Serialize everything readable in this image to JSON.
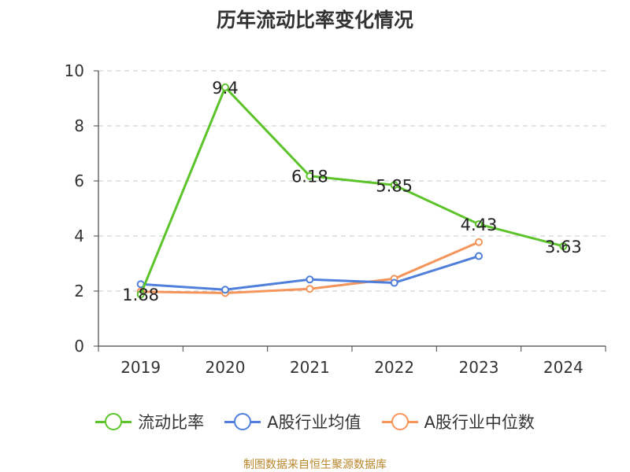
{
  "chart_data": {
    "type": "line",
    "title": "历年流动比率变化情况",
    "categories": [
      "2019",
      "2020",
      "2021",
      "2022",
      "2023",
      "2024"
    ],
    "y_ticks": [
      "0",
      "2",
      "4",
      "6",
      "8",
      "10"
    ],
    "ylim": [
      0,
      10
    ],
    "grid": true,
    "legend_position": "bottom",
    "series": [
      {
        "name": "流动比率",
        "color": "#5cc42a",
        "values": [
          1.88,
          9.4,
          6.18,
          5.85,
          4.43,
          3.63
        ],
        "labels": [
          "1.88",
          "9.4",
          "6.18",
          "5.85",
          "4.43",
          "3.63"
        ]
      },
      {
        "name": "A股行业均值",
        "color": "#4f7fda",
        "values": [
          2.25,
          2.05,
          2.42,
          2.3,
          3.27,
          null
        ]
      },
      {
        "name": "A股行业中位数",
        "color": "#f4955c",
        "values": [
          1.98,
          1.93,
          2.08,
          2.45,
          3.78,
          null
        ]
      }
    ]
  },
  "legend": {
    "items": [
      {
        "label": "流动比率",
        "color": "#5cc42a"
      },
      {
        "label": "A股行业均值",
        "color": "#4f7fda"
      },
      {
        "label": "A股行业中位数",
        "color": "#f4955c"
      }
    ]
  },
  "footer": {
    "text": "制图数据来自恒生聚源数据库"
  }
}
